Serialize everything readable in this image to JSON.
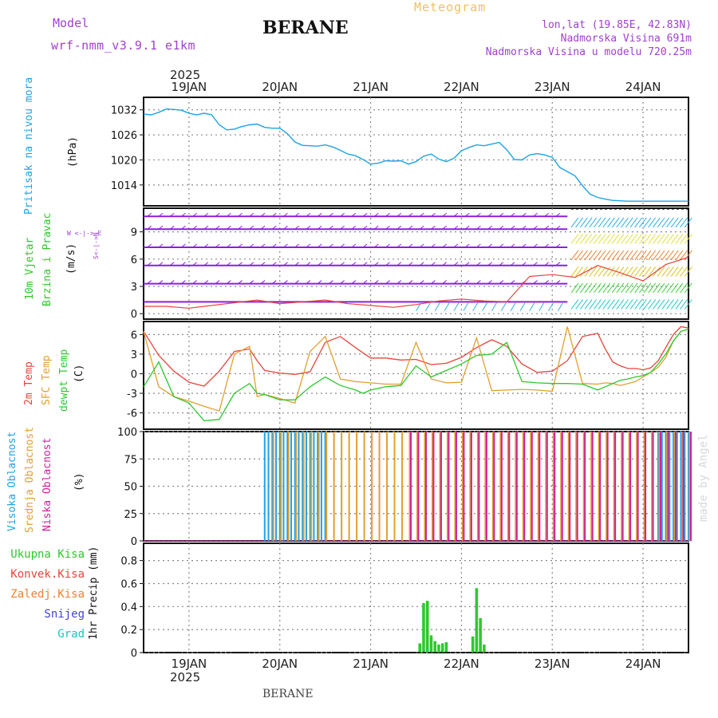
{
  "header": {
    "model_label": "Model",
    "model_name": "wrf-nmm_v3.9.1 e1km",
    "station": "BERANE",
    "product": "Meteogram",
    "coords": "lon,lat (19.85E, 42.83N)",
    "elevation": "Nadmorska Visina 691m",
    "model_elevation": "Nadmorska Visina u modelu 720.25m",
    "credit": "made by Angel",
    "footer_station": "BERANE",
    "year": "2025"
  },
  "colors": {
    "pressure": "#1ea3e6",
    "temp2m": "#e8453c",
    "sfc_temp": "#e0a030",
    "dewpt": "#2ec82e",
    "high_cloud": "#1ea3e6",
    "mid_cloud": "#e0a030",
    "low_cloud": "#d01e9e",
    "precip_total": "#2ec82e",
    "wind_purple": "#8a1ee0",
    "grid": "#888888",
    "title_purple": "#a040d0",
    "meteogram_orange": "#f0c060"
  },
  "time_axis": {
    "labels": [
      "19JAN",
      "20JAN",
      "21JAN",
      "22JAN",
      "23JAN",
      "24JAN"
    ],
    "start_hour": 0,
    "end_hour": 144
  },
  "panels": {
    "pressure": {
      "title": "Pritisak na nivou mora",
      "unit": "(hPa)",
      "ticks": [
        "1032",
        "1026",
        "1020",
        "1014"
      ]
    },
    "wind": {
      "title1": "10m Vjetar",
      "title2": "Brzina i Pravac",
      "unit": "(m/s)",
      "ticks": [
        "9",
        "6",
        "3",
        "0"
      ],
      "compass": "W <-|-> E",
      "compass_ns": "S<-|->N"
    },
    "temp": {
      "title1": "2m Temp",
      "title2": "SFC Temp",
      "title3": "dewpt Temp",
      "unit": "(C)",
      "ticks": [
        "6",
        "3",
        "0",
        "-3",
        "-6"
      ]
    },
    "cloud": {
      "title1": "Visoka Oblacnost",
      "title2": "Srednja Oblacnost",
      "title3": "Niska Oblacnost",
      "unit": "(%)",
      "ticks": [
        "100",
        "75",
        "50",
        "25",
        "0"
      ]
    },
    "precip": {
      "legend": [
        "Ukupna Kisa",
        "Konvek.Kisa",
        "Zaledj.Kisa",
        "Snijeg",
        "Grad"
      ],
      "legend_colors": [
        "#2ec82e",
        "#e8453c",
        "#f08030",
        "#4040e0",
        "#20c0c0"
      ],
      "unit": "1hr Precip (mm)",
      "ticks": [
        "0.8",
        "0.6",
        "0.4",
        "0.2",
        "0"
      ]
    }
  },
  "chart_data": [
    {
      "type": "line",
      "title": "Pritisak na nivou mora",
      "ylabel": "(hPa)",
      "ylim": [
        1009,
        1035
      ],
      "series": [
        {
          "name": "Pritisak na nivou mora",
          "x": [
            0,
            2,
            4,
            6,
            8,
            10,
            12,
            14,
            16,
            18,
            20,
            22,
            24,
            26,
            28,
            30,
            32,
            34,
            36,
            38,
            40,
            42,
            44,
            46,
            48,
            50,
            52,
            54,
            56,
            58,
            60,
            62,
            64,
            66,
            68,
            70,
            72,
            74,
            76,
            78,
            80,
            82,
            84,
            86,
            88,
            90,
            92,
            94,
            96,
            98,
            100,
            102,
            104,
            106,
            108,
            110,
            112,
            114,
            116,
            118,
            120,
            122,
            124,
            126,
            128,
            130,
            132,
            134,
            136,
            138,
            140,
            142,
            144
          ],
          "values": [
            1031,
            1030.8,
            1031.4,
            1032.2,
            1032.1,
            1031.9,
            1031.2,
            1030.8,
            1031.2,
            1030.8,
            1028.4,
            1027.2,
            1027.4,
            1028.0,
            1028.4,
            1028.6,
            1027.8,
            1027.6,
            1027.6,
            1026.3,
            1024.3,
            1023.5,
            1023.4,
            1023.3,
            1023.6,
            1023.1,
            1022.3,
            1021.4,
            1021.0,
            1020.1,
            1019.0,
            1019.2,
            1019.8,
            1019.7,
            1019.8,
            1019.0,
            1019.6,
            1020.9,
            1021.4,
            1020.2,
            1019.6,
            1020.4,
            1022.2,
            1023.0,
            1023.6,
            1023.4,
            1023.8,
            1024.2,
            1022.4,
            1020.1,
            1020.0,
            1021.2,
            1021.5,
            1021.2,
            1020.6,
            1018.2,
            1017.2,
            1016.2,
            1013.8,
            1011.8,
            1011.0,
            1010.6,
            1010.3,
            1010.2,
            1010.1,
            1010.1,
            1010.1,
            1010.1,
            1010.1,
            1010.1,
            1010.1,
            1010.1,
            1010.1
          ]
        }
      ]
    },
    {
      "type": "line",
      "title": "10m Vjetar",
      "ylabel": "(m/s)",
      "ylim": [
        -0.6,
        11.6
      ],
      "series": [
        {
          "name": "10m Vjetar",
          "x": [
            0,
            6,
            12,
            18,
            24,
            30,
            36,
            42,
            48,
            54,
            60,
            66,
            72,
            78,
            84,
            90,
            96,
            102,
            108,
            114,
            120,
            126,
            132,
            138,
            144
          ],
          "values": [
            0.8,
            0.8,
            0.6,
            0.9,
            1.2,
            1.5,
            1.1,
            1.3,
            1.5,
            1.1,
            0.9,
            0.7,
            1.0,
            1.4,
            1.6,
            1.4,
            1.3,
            4.1,
            4.3,
            4.0,
            5.3,
            4.5,
            3.6,
            5.4,
            6.2
          ]
        }
      ]
    },
    {
      "type": "line",
      "title": "2m Temp / SFC Temp / dewpt Temp",
      "ylabel": "(C)",
      "ylim": [
        -8.5,
        8
      ],
      "series": [
        {
          "name": "2m Temp",
          "x": [
            0,
            4,
            8,
            12,
            16,
            20,
            24,
            28,
            30,
            32,
            36,
            40,
            44,
            48,
            52,
            56,
            58,
            60,
            64,
            68,
            72,
            76,
            80,
            84,
            88,
            92,
            96,
            100,
            104,
            108,
            112,
            116,
            120,
            122,
            124,
            126,
            128,
            130,
            132,
            134,
            136,
            138,
            140,
            142,
            144
          ],
          "values": [
            6.5,
            2.8,
            0.4,
            -1.3,
            -1.9,
            0.4,
            3.4,
            3.8,
            2.0,
            0.5,
            0.1,
            -0.1,
            0.3,
            4.8,
            5.7,
            4.0,
            3.2,
            2.4,
            2.4,
            2.1,
            2.2,
            1.4,
            1.6,
            2.5,
            4.0,
            5.2,
            4.2,
            1.5,
            0.2,
            0.4,
            2.0,
            5.7,
            6.2,
            3.8,
            1.8,
            1.2,
            0.8,
            0.8,
            0.6,
            0.9,
            2.0,
            4.0,
            6.0,
            7.2,
            7.0
          ]
        },
        {
          "name": "SFC Temp",
          "x": [
            0,
            4,
            8,
            12,
            16,
            20,
            24,
            28,
            30,
            32,
            36,
            40,
            44,
            48,
            52,
            56,
            58,
            60,
            64,
            68,
            72,
            76,
            80,
            84,
            88,
            92,
            96,
            100,
            104,
            108,
            112,
            116,
            120,
            122,
            124,
            126,
            128,
            130,
            132,
            134,
            136,
            138,
            140,
            142,
            144
          ],
          "values": [
            6.5,
            -2.0,
            -3.5,
            -4.2,
            -5.0,
            -5.7,
            3.0,
            4.2,
            -3.5,
            -3.2,
            -3.8,
            -4.5,
            3.4,
            5.7,
            -0.8,
            -1.2,
            -1.3,
            -1.4,
            -1.6,
            -1.6,
            4.8,
            -0.8,
            -1.4,
            -1.3,
            5.5,
            -2.6,
            -2.5,
            -2.4,
            -2.5,
            -2.7,
            7.2,
            -1.5,
            -1.6,
            -1.4,
            -1.5,
            -1.8,
            -1.5,
            -1.2,
            -0.5,
            0.2,
            1.0,
            2.5,
            5.0,
            6.5,
            6.8
          ]
        },
        {
          "name": "dewpt Temp",
          "x": [
            0,
            4,
            8,
            12,
            16,
            20,
            24,
            28,
            30,
            32,
            36,
            40,
            44,
            48,
            52,
            56,
            58,
            60,
            64,
            68,
            72,
            76,
            80,
            84,
            88,
            92,
            96,
            100,
            104,
            108,
            112,
            116,
            120,
            122,
            124,
            126,
            128,
            130,
            132,
            134,
            136,
            138,
            140,
            142,
            144
          ],
          "values": [
            -2.0,
            1.8,
            -3.5,
            -4.5,
            -7.2,
            -7.0,
            -3.0,
            -1.5,
            -3.0,
            -3.2,
            -4.0,
            -4.0,
            -2.0,
            -0.5,
            -1.8,
            -2.5,
            -3.0,
            -2.5,
            -2.0,
            -1.8,
            1.2,
            -0.5,
            0.5,
            1.5,
            2.8,
            3.0,
            4.8,
            -1.2,
            -1.4,
            -1.5,
            -1.5,
            -1.6,
            -2.5,
            -2.0,
            -1.5,
            -1.0,
            -0.8,
            -0.5,
            -0.3,
            0.2,
            1.5,
            3.0,
            5.0,
            6.5,
            6.8
          ]
        }
      ]
    },
    {
      "type": "bar",
      "title": "Oblacnost",
      "ylabel": "(%)",
      "ylim": [
        0,
        100
      ],
      "series": [
        {
          "name": "Visoka Oblacnost",
          "x": [
            32,
            33,
            34,
            35,
            36,
            37,
            38,
            39,
            40,
            41,
            42,
            43,
            44,
            45,
            46,
            47,
            48,
            49,
            50,
            51,
            52,
            53,
            54,
            55,
            56,
            57,
            58,
            59,
            60,
            61,
            62,
            63,
            64,
            65,
            66,
            67,
            68,
            69,
            70,
            71,
            72,
            73,
            74,
            75,
            76,
            77,
            78,
            79,
            80,
            81,
            82,
            83,
            84,
            85,
            86,
            87,
            88,
            89,
            90,
            91,
            92,
            93,
            94,
            95,
            96,
            97,
            98,
            99,
            100,
            101,
            102,
            103,
            104,
            105,
            106,
            107,
            108,
            109,
            110,
            111,
            112,
            113,
            114,
            115,
            116,
            117,
            118,
            119,
            120,
            121,
            122,
            123,
            124,
            125,
            126,
            127,
            128,
            129,
            130,
            131,
            132,
            133,
            134,
            135,
            136,
            137,
            138,
            139,
            140,
            141,
            142,
            143,
            144
          ],
          "values": [
            100,
            100,
            100,
            100,
            100,
            100,
            100,
            100,
            100,
            100,
            100,
            100,
            100,
            100,
            100,
            100,
            100,
            0,
            0,
            0,
            0,
            0,
            0,
            0,
            0,
            0,
            0,
            0,
            0,
            0,
            0,
            0,
            0,
            0,
            0,
            0,
            0,
            0,
            0,
            0,
            0,
            0,
            0,
            0,
            0,
            0,
            0,
            0,
            0,
            0,
            0,
            0,
            0,
            0,
            0,
            0,
            0,
            0,
            0,
            0,
            0,
            0,
            0,
            0,
            0,
            0,
            0,
            0,
            0,
            0,
            0,
            0,
            0,
            0,
            0,
            0,
            0,
            0,
            0,
            0,
            0,
            0,
            0,
            0,
            0,
            0,
            0,
            0,
            0,
            0,
            0,
            0,
            0,
            0,
            0,
            0,
            0,
            0,
            0,
            0,
            0,
            0,
            0,
            0,
            100,
            100,
            100,
            100,
            100,
            100,
            100,
            100,
            100
          ]
        },
        {
          "name": "Srednja Oblacnost",
          "x": [
            34,
            36,
            38,
            40,
            42,
            44,
            46,
            48,
            50,
            52,
            54,
            56,
            58,
            60,
            62,
            64,
            66,
            68,
            70,
            72,
            74,
            76,
            78,
            80,
            82,
            84,
            86,
            88,
            90,
            92,
            94,
            96,
            98,
            100,
            102,
            104,
            106,
            108,
            110,
            112,
            114,
            116,
            118,
            120,
            122,
            124,
            126,
            128,
            130,
            132,
            134,
            136,
            138,
            140,
            142,
            144
          ],
          "values": [
            100,
            100,
            100,
            100,
            100,
            100,
            100,
            100,
            100,
            100,
            100,
            100,
            100,
            100,
            100,
            100,
            100,
            100,
            100,
            100,
            100,
            100,
            100,
            100,
            100,
            100,
            100,
            100,
            100,
            100,
            100,
            100,
            100,
            100,
            100,
            100,
            100,
            100,
            100,
            100,
            100,
            100,
            100,
            100,
            100,
            100,
            100,
            100,
            100,
            100,
            100,
            100,
            100,
            100,
            100,
            100
          ]
        },
        {
          "name": "Niska Oblacnost",
          "x": [
            70,
            72,
            74,
            76,
            78,
            80,
            82,
            84,
            86,
            88,
            90,
            92,
            94,
            96,
            98,
            100,
            102,
            104,
            106,
            108,
            110,
            112,
            114,
            116,
            118,
            120,
            122,
            124,
            126,
            128,
            130,
            132,
            134,
            136,
            138,
            140,
            142,
            144
          ],
          "values": [
            100,
            100,
            100,
            100,
            100,
            100,
            100,
            100,
            100,
            100,
            100,
            100,
            100,
            100,
            100,
            100,
            100,
            100,
            100,
            100,
            100,
            100,
            100,
            100,
            100,
            100,
            100,
            100,
            100,
            100,
            100,
            100,
            100,
            100,
            100,
            100,
            100,
            100
          ]
        }
      ]
    },
    {
      "type": "bar",
      "title": "1hr Precip",
      "ylabel": "1hr Precip (mm)",
      "ylim": [
        0,
        0.95
      ],
      "series": [
        {
          "name": "Ukupna Kisa",
          "x": [
            73,
            74,
            75,
            76,
            77,
            78,
            79,
            80,
            81,
            82,
            87,
            88,
            89,
            90,
            91
          ],
          "values": [
            0.08,
            0.43,
            0.45,
            0.15,
            0.1,
            0.07,
            0.08,
            0.09,
            0.0,
            0.0,
            0.14,
            0.56,
            0.3,
            0.07,
            0.0
          ]
        }
      ]
    }
  ]
}
